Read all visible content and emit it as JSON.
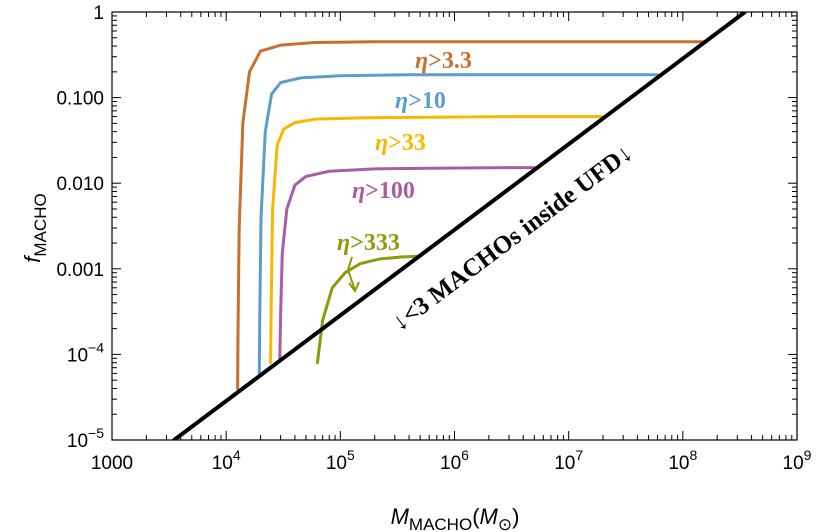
{
  "chart_data": {
    "type": "line",
    "x_scale": "log",
    "y_scale": "log",
    "xlim": [
      1000,
      1000000000
    ],
    "ylim": [
      1e-05,
      1
    ],
    "xlabel": {
      "main": "M",
      "sub": "MACHO",
      "unit_open": "(M",
      "unit_sub": "⊙",
      "unit_close": ")"
    },
    "ylabel": {
      "main": "f",
      "sub": "MACHO"
    },
    "x_ticks": [
      {
        "value": 1000,
        "label": "1000"
      },
      {
        "value": 10000,
        "base": "10",
        "exp": "4"
      },
      {
        "value": 100000,
        "base": "10",
        "exp": "5"
      },
      {
        "value": 1000000,
        "base": "10",
        "exp": "6"
      },
      {
        "value": 10000000,
        "base": "10",
        "exp": "7"
      },
      {
        "value": 100000000,
        "base": "10",
        "exp": "8"
      },
      {
        "value": 1000000000,
        "base": "10",
        "exp": "9"
      }
    ],
    "y_ticks": [
      {
        "value": 1e-05,
        "base": "10",
        "exp": "−5"
      },
      {
        "value": 0.0001,
        "base": "10",
        "exp": "−4"
      },
      {
        "value": 0.001,
        "label": "0.001"
      },
      {
        "value": 0.01,
        "label": "0.010"
      },
      {
        "value": 0.1,
        "label": "0.100"
      },
      {
        "value": 1,
        "label": "1"
      }
    ],
    "series": [
      {
        "name": "η>3.3",
        "color": "#c8702d",
        "x": [
          12600,
          12700,
          13000,
          14000,
          16000,
          20000,
          30000,
          60000,
          200000,
          1000000,
          10000000,
          150000000
        ],
        "y": [
          4e-05,
          0.0002,
          0.003,
          0.05,
          0.2,
          0.35,
          0.41,
          0.44,
          0.45,
          0.45,
          0.45,
          0.45
        ]
      },
      {
        "name": "η>10",
        "color": "#5b9ec9",
        "x": [
          19500,
          19700,
          20200,
          22000,
          25000,
          30000,
          45000,
          100000,
          400000,
          2000000,
          20000000,
          60000000
        ],
        "y": [
          6e-05,
          0.0003,
          0.004,
          0.04,
          0.11,
          0.15,
          0.17,
          0.18,
          0.185,
          0.185,
          0.185,
          0.185
        ]
      },
      {
        "name": "η>33",
        "color": "#f6b800",
        "x": [
          24500,
          24800,
          25500,
          28000,
          32000,
          40000,
          60000,
          150000,
          600000,
          3000000,
          20000000
        ],
        "y": [
          8e-05,
          0.0004,
          0.005,
          0.028,
          0.043,
          0.051,
          0.056,
          0.058,
          0.059,
          0.06,
          0.06
        ]
      },
      {
        "name": "η>100",
        "color": "#a85da5",
        "x": [
          29500,
          30000,
          31000,
          34000,
          40000,
          50000,
          80000,
          200000,
          800000,
          3000000,
          5000000
        ],
        "y": [
          9e-05,
          0.0003,
          0.0015,
          0.005,
          0.0095,
          0.012,
          0.0138,
          0.0147,
          0.015,
          0.0152,
          0.0152
        ]
      },
      {
        "name": "η>333",
        "color": "#8e9a0a",
        "x": [
          63000,
          70000,
          85000,
          110000,
          150000,
          220000,
          350000,
          500000
        ],
        "y": [
          8e-05,
          0.00025,
          0.0006,
          0.0009,
          0.00115,
          0.0013,
          0.00138,
          0.0014
        ]
      },
      {
        "name": "boundary",
        "color": "#000000",
        "x": [
          3500,
          350000000
        ],
        "y": [
          1e-05,
          1
        ]
      }
    ],
    "series_labels": [
      "η>3.3",
      "η>10",
      "η>33",
      "η>100",
      "η>333"
    ],
    "annotation": "↓<3 MACHOs inside UFD↓",
    "grid": false,
    "legend": "none"
  }
}
